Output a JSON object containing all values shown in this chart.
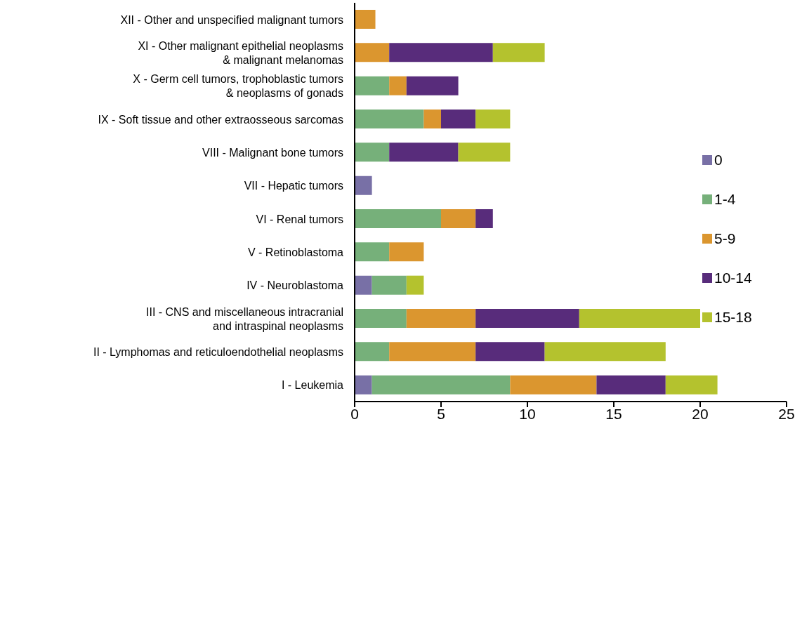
{
  "chart_data": {
    "type": "bar",
    "orientation": "horizontal",
    "stacked": true,
    "categories": [
      "XII - Other and unspecified malignant tumors",
      "XI - Other malignant epithelial neoplasms\n& malignant melanomas",
      "X - Germ cell tumors, trophoblastic tumors\n& neoplasms of gonads",
      "IX - Soft tissue and other extraosseous sarcomas",
      "VIII - Malignant bone tumors",
      "VII - Hepatic tumors",
      "VI - Renal tumors",
      "V - Retinoblastoma",
      "IV - Neuroblastoma",
      "III - CNS and miscellaneous intracranial\nand intraspinal neoplasms",
      "II - Lymphomas and reticuloendothelial neoplasms",
      "I - Leukemia"
    ],
    "series": [
      {
        "name": "0",
        "color": "#7870a6",
        "values": [
          0,
          0,
          0,
          0,
          0,
          1,
          0,
          0,
          1,
          0,
          0,
          1
        ]
      },
      {
        "name": "1-4",
        "color": "#76b07a",
        "values": [
          0,
          0,
          2,
          4,
          2,
          0,
          5,
          2,
          2,
          3,
          2,
          8
        ]
      },
      {
        "name": "5-9",
        "color": "#db962f",
        "values": [
          1.2,
          2,
          1,
          1,
          0,
          0,
          2,
          2,
          0,
          4,
          5,
          5
        ]
      },
      {
        "name": "10-14",
        "color": "#582c7b",
        "values": [
          0,
          6,
          3,
          2,
          4,
          0,
          1,
          0,
          0,
          6,
          4,
          4
        ]
      },
      {
        "name": "15-18",
        "color": "#b4c22e",
        "values": [
          0,
          3,
          0,
          2,
          3,
          0,
          0,
          0,
          1,
          7,
          7,
          3
        ]
      }
    ],
    "xlim": [
      0,
      25
    ],
    "xticks": [
      0,
      5,
      10,
      15,
      20,
      25
    ],
    "grid": false,
    "legend": "right"
  }
}
